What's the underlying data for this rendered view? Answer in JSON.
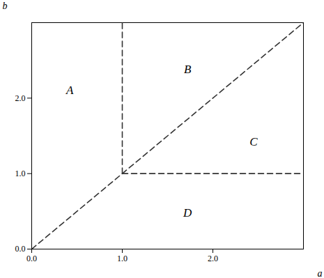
{
  "chart_data": {
    "type": "line",
    "xlabel": "a",
    "ylabel": "b",
    "xlim": [
      0,
      3.0
    ],
    "ylim": [
      0,
      3.0
    ],
    "xticks": [
      0,
      1,
      2
    ],
    "yticks": [
      0,
      1,
      2
    ],
    "grid": false,
    "series": [
      {
        "x": [
          0,
          3.0
        ],
        "values": [
          0,
          3.0
        ],
        "color": "#333333",
        "line_style": "dashed"
      },
      {
        "x": [
          1,
          1
        ],
        "values": [
          1,
          3.0
        ],
        "color": "#333333",
        "line_style": "dashed"
      },
      {
        "x": [
          1,
          3.0
        ],
        "values": [
          1,
          1
        ],
        "color": "#333333",
        "line_style": "dashed"
      }
    ],
    "annotations": [
      {
        "text": "A",
        "x": 0.42,
        "y": 2.1
      },
      {
        "text": "B",
        "x": 1.72,
        "y": 2.38
      },
      {
        "text": "C",
        "x": 2.45,
        "y": 1.42
      },
      {
        "text": "D",
        "x": 1.72,
        "y": 0.48
      }
    ]
  }
}
